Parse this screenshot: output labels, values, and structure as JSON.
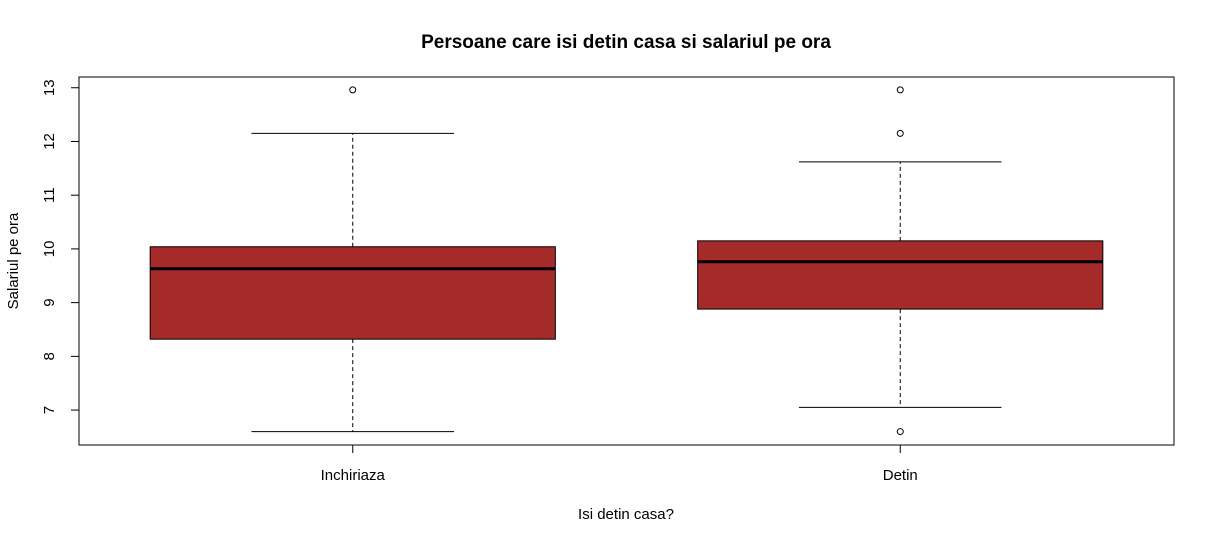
{
  "chart_data": {
    "type": "boxplot",
    "title": "Persoane care isi detin casa si salariul pe ora",
    "xlabel": "Isi detin casa?",
    "ylabel": "Salariul pe ora",
    "ylim": [
      6.35,
      13.2
    ],
    "yticks": [
      7,
      8,
      9,
      10,
      11,
      12,
      13
    ],
    "grid": false,
    "box_color": "#A52A2A",
    "categories": [
      "Inchiriaza",
      "Detin"
    ],
    "boxes": [
      {
        "category": "Inchiriaza",
        "whisker_low": 6.6,
        "q1": 8.32,
        "median": 9.63,
        "q3": 10.04,
        "whisker_high": 12.15,
        "outliers": [
          12.96
        ]
      },
      {
        "category": "Detin",
        "whisker_low": 7.05,
        "q1": 8.88,
        "median": 9.76,
        "q3": 10.15,
        "whisker_high": 11.62,
        "outliers": [
          12.96,
          12.15,
          6.6
        ]
      }
    ]
  }
}
